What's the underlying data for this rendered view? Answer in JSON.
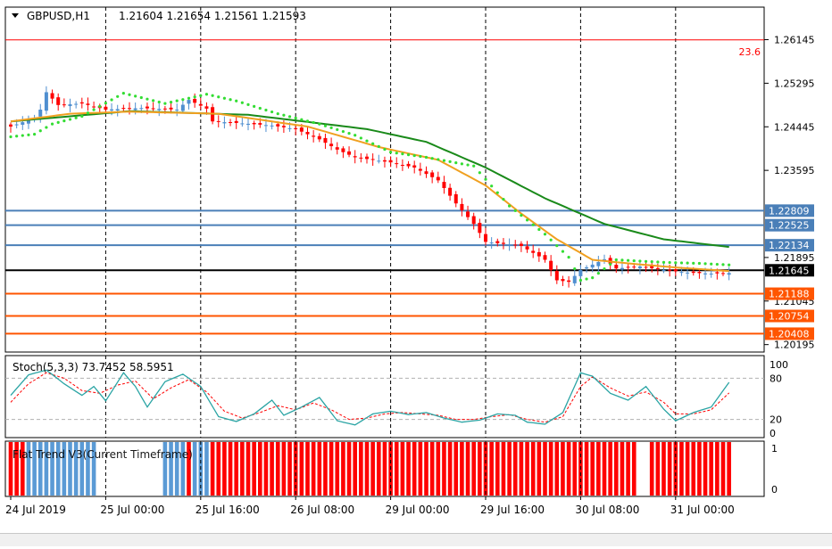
{
  "header": {
    "symbol_tf": "GBPUSD,H1",
    "ohlc": "1.21604 1.21654 1.21561 1.21593"
  },
  "fib_label": "23.6",
  "stoch": {
    "label": "Stoch(5,3,3) 73.7452 58.5951"
  },
  "flat": {
    "label": "Flat Trend V3(Current Timeframe)"
  },
  "colors": {
    "bull": "#4f8fd0",
    "bear": "#ff0000",
    "ma_slow": "#1a8a1a",
    "ma_fast": "#f0a020",
    "psar": "#33dd33",
    "level_blue": "#4a7fb8",
    "level_orange": "#ff5500",
    "fib": "#ff0000",
    "current": "#000000",
    "stoch_main": "#2aa4a4",
    "stoch_signal": "#ff0000",
    "flat_blue": "#5a9ad5",
    "flat_red": "#ff0000"
  },
  "chart_data": [
    {
      "type": "candlestick",
      "symbol": "GBPUSD",
      "timeframe": "H1",
      "ylim": [
        1.2005,
        1.2678
      ],
      "y_ticks": [
        1.26145,
        1.25295,
        1.24445,
        1.23595,
        1.21895,
        1.21045,
        1.20195
      ],
      "x_ticks": [
        "24 Jul 2019",
        "25 Jul 00:00",
        "25 Jul 16:00",
        "26 Jul 08:00",
        "29 Jul 00:00",
        "29 Jul 16:00",
        "30 Jul 08:00",
        "31 Jul 00:00"
      ],
      "x_tick_index": [
        0,
        16,
        32,
        48,
        64,
        80,
        96,
        112
      ],
      "bars_count": 122,
      "candles_anchor_close": [
        [
          0,
          1.2445
        ],
        [
          4,
          1.2462
        ],
        [
          5,
          1.2478
        ],
        [
          6,
          1.2512
        ],
        [
          8,
          1.2487
        ],
        [
          12,
          1.249
        ],
        [
          16,
          1.2478
        ],
        [
          22,
          1.2481
        ],
        [
          28,
          1.2478
        ],
        [
          30,
          1.2497
        ],
        [
          33,
          1.248
        ],
        [
          34,
          1.2455
        ],
        [
          38,
          1.2452
        ],
        [
          44,
          1.2447
        ],
        [
          48,
          1.244
        ],
        [
          52,
          1.242
        ],
        [
          55,
          1.24
        ],
        [
          58,
          1.2385
        ],
        [
          64,
          1.2375
        ],
        [
          68,
          1.2365
        ],
        [
          72,
          1.234
        ],
        [
          75,
          1.2295
        ],
        [
          78,
          1.2255
        ],
        [
          80,
          1.222
        ],
        [
          86,
          1.2212
        ],
        [
          90,
          1.2185
        ],
        [
          92,
          1.2145
        ],
        [
          94,
          1.2142
        ],
        [
          96,
          1.2165
        ],
        [
          100,
          1.2186
        ],
        [
          102,
          1.2168
        ],
        [
          106,
          1.2172
        ],
        [
          110,
          1.2165
        ],
        [
          114,
          1.216
        ],
        [
          118,
          1.2158
        ],
        [
          121,
          1.21593
        ]
      ],
      "ma_slow": [
        [
          0,
          1.2455
        ],
        [
          20,
          1.2475
        ],
        [
          40,
          1.2468
        ],
        [
          60,
          1.244
        ],
        [
          70,
          1.2415
        ],
        [
          80,
          1.2365
        ],
        [
          90,
          1.2305
        ],
        [
          100,
          1.2255
        ],
        [
          110,
          1.2225
        ],
        [
          121,
          1.221
        ]
      ],
      "ma_fast": [
        [
          0,
          1.2455
        ],
        [
          10,
          1.247
        ],
        [
          20,
          1.2474
        ],
        [
          35,
          1.247
        ],
        [
          50,
          1.2445
        ],
        [
          62,
          1.2405
        ],
        [
          72,
          1.238
        ],
        [
          80,
          1.233
        ],
        [
          86,
          1.2275
        ],
        [
          92,
          1.2225
        ],
        [
          98,
          1.2185
        ],
        [
          104,
          1.2178
        ],
        [
          112,
          1.217
        ],
        [
          121,
          1.2163
        ]
      ],
      "psar": [
        [
          0,
          1.2425
        ],
        [
          4,
          1.243
        ],
        [
          7,
          1.245
        ],
        [
          12,
          1.2465
        ],
        [
          19,
          1.251
        ],
        [
          26,
          1.249
        ],
        [
          33,
          1.2508
        ],
        [
          38,
          1.2495
        ],
        [
          45,
          1.247
        ],
        [
          52,
          1.245
        ],
        [
          58,
          1.2428
        ],
        [
          64,
          1.2395
        ],
        [
          70,
          1.2385
        ],
        [
          78,
          1.2368
        ],
        [
          84,
          1.229
        ],
        [
          90,
          1.2235
        ],
        [
          94,
          1.219
        ],
        [
          96,
          1.2145
        ],
        [
          98,
          1.215
        ],
        [
          102,
          1.2185
        ],
        [
          110,
          1.218
        ],
        [
          116,
          1.2178
        ],
        [
          121,
          1.2175
        ]
      ],
      "horizontal_levels": [
        {
          "price": 1.2614,
          "label": "23.6",
          "color": "#ff0000"
        },
        {
          "price": 1.22809,
          "label": "1.22809",
          "color": "#4a7fb8"
        },
        {
          "price": 1.22525,
          "label": "1.22525",
          "color": "#4a7fb8"
        },
        {
          "price": 1.22134,
          "label": "1.22134",
          "color": "#4a7fb8"
        },
        {
          "price": 1.21645,
          "label": "1.21645",
          "color": "#000000"
        },
        {
          "price": 1.21188,
          "label": "1.21188",
          "color": "#ff5500"
        },
        {
          "price": 1.20754,
          "label": "1.20754",
          "color": "#ff5500"
        },
        {
          "price": 1.20408,
          "label": "1.20408",
          "color": "#ff5500"
        }
      ]
    },
    {
      "type": "line",
      "name_label": "Stoch(5,3,3)",
      "ylim": [
        0,
        100
      ],
      "y_ticks": [
        100,
        80,
        20,
        0
      ],
      "levels": [
        80,
        20
      ],
      "main_anchors": [
        [
          0,
          55
        ],
        [
          3,
          85
        ],
        [
          6,
          92
        ],
        [
          9,
          72
        ],
        [
          12,
          55
        ],
        [
          14,
          68
        ],
        [
          16,
          47
        ],
        [
          19,
          88
        ],
        [
          21,
          68
        ],
        [
          23,
          38
        ],
        [
          26,
          75
        ],
        [
          29,
          86
        ],
        [
          32,
          68
        ],
        [
          35,
          24
        ],
        [
          38,
          17
        ],
        [
          41,
          28
        ],
        [
          44,
          48
        ],
        [
          46,
          26
        ],
        [
          49,
          38
        ],
        [
          52,
          52
        ],
        [
          55,
          18
        ],
        [
          58,
          12
        ],
        [
          61,
          28
        ],
        [
          64,
          32
        ],
        [
          67,
          27
        ],
        [
          70,
          30
        ],
        [
          73,
          22
        ],
        [
          76,
          16
        ],
        [
          79,
          19
        ],
        [
          82,
          28
        ],
        [
          85,
          26
        ],
        [
          87,
          16
        ],
        [
          90,
          13
        ],
        [
          93,
          30
        ],
        [
          96,
          88
        ],
        [
          98,
          83
        ],
        [
          101,
          58
        ],
        [
          104,
          48
        ],
        [
          107,
          68
        ],
        [
          110,
          35
        ],
        [
          112,
          18
        ],
        [
          115,
          30
        ],
        [
          118,
          38
        ],
        [
          121,
          74
        ]
      ],
      "signal_anchors": [
        [
          0,
          45
        ],
        [
          3,
          72
        ],
        [
          6,
          88
        ],
        [
          9,
          80
        ],
        [
          12,
          62
        ],
        [
          15,
          58
        ],
        [
          18,
          70
        ],
        [
          21,
          76
        ],
        [
          24,
          50
        ],
        [
          27,
          66
        ],
        [
          30,
          78
        ],
        [
          33,
          60
        ],
        [
          36,
          32
        ],
        [
          39,
          22
        ],
        [
          42,
          30
        ],
        [
          45,
          40
        ],
        [
          48,
          34
        ],
        [
          51,
          44
        ],
        [
          54,
          34
        ],
        [
          57,
          20
        ],
        [
          60,
          22
        ],
        [
          63,
          28
        ],
        [
          66,
          30
        ],
        [
          69,
          28
        ],
        [
          72,
          26
        ],
        [
          75,
          20
        ],
        [
          78,
          20
        ],
        [
          81,
          24
        ],
        [
          84,
          27
        ],
        [
          87,
          20
        ],
        [
          90,
          16
        ],
        [
          93,
          24
        ],
        [
          96,
          68
        ],
        [
          98,
          82
        ],
        [
          101,
          66
        ],
        [
          104,
          54
        ],
        [
          107,
          60
        ],
        [
          110,
          45
        ],
        [
          112,
          28
        ],
        [
          115,
          28
        ],
        [
          118,
          34
        ],
        [
          121,
          58.6
        ]
      ]
    },
    {
      "type": "bar",
      "name_label": "Flat Trend V3(Current Timeframe)",
      "ylim": [
        0,
        1
      ],
      "y_ticks": [
        1,
        0
      ],
      "segments": [
        {
          "start": 0,
          "end": 2,
          "color": "red"
        },
        {
          "start": 3,
          "end": 14,
          "color": "blue"
        },
        {
          "start": 15,
          "end": 25,
          "color": "none"
        },
        {
          "start": 26,
          "end": 29,
          "color": "blue"
        },
        {
          "start": 30,
          "end": 30,
          "color": "red"
        },
        {
          "start": 31,
          "end": 33,
          "color": "blue"
        },
        {
          "start": 34,
          "end": 105,
          "color": "red"
        },
        {
          "start": 106,
          "end": 107,
          "color": "none"
        },
        {
          "start": 108,
          "end": 121,
          "color": "red"
        }
      ]
    }
  ]
}
